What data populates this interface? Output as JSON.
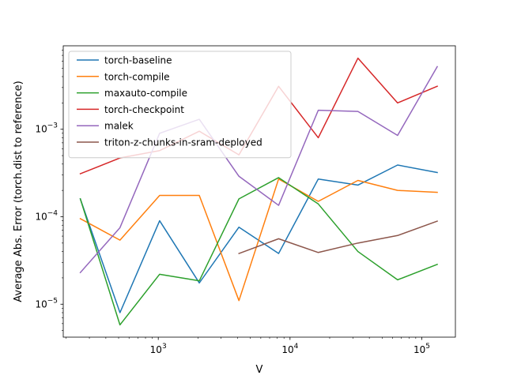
{
  "chart_data": {
    "type": "line",
    "title": "",
    "xlabel": "V",
    "ylabel": "Average Abs. Error (torch.dist to reference)",
    "xscale": "log",
    "yscale": "log",
    "xlim": [
      190,
      180000
    ],
    "ylim": [
      4.2e-06,
      0.009
    ],
    "x_ticks": [
      {
        "value": 1000,
        "base": "10",
        "exp": "3"
      },
      {
        "value": 10000,
        "base": "10",
        "exp": "4"
      },
      {
        "value": 100000,
        "base": "10",
        "exp": "5"
      }
    ],
    "y_ticks": [
      {
        "value": 1e-05,
        "base": "10",
        "exp": "−5"
      },
      {
        "value": 0.0001,
        "base": "10",
        "exp": "−4"
      },
      {
        "value": 0.001,
        "base": "10",
        "exp": "−3"
      }
    ],
    "legend_position": "top-left",
    "series": [
      {
        "name": "torch-baseline",
        "color": "#1f77b4",
        "x": [
          256,
          512,
          1024,
          2048,
          4096,
          8192,
          16384,
          32768,
          65536,
          131072
        ],
        "y": [
          0.00016,
          8e-06,
          9e-05,
          1.75e-05,
          7.6e-05,
          3.8e-05,
          0.00027,
          0.00023,
          0.00039,
          0.00032
        ]
      },
      {
        "name": "torch-compile",
        "color": "#ff7f0e",
        "x": [
          256,
          512,
          1024,
          2048,
          4096,
          8192,
          16384,
          32768,
          65536,
          131072
        ],
        "y": [
          9.5e-05,
          5.4e-05,
          0.000175,
          0.000175,
          1.1e-05,
          0.00027,
          0.00015,
          0.00026,
          0.0002,
          0.00019
        ]
      },
      {
        "name": "maxauto-compile",
        "color": "#2ca02c",
        "x": [
          256,
          512,
          1024,
          2048,
          4096,
          8192,
          16384,
          32768,
          65536,
          131072
        ],
        "y": [
          0.00016,
          5.8e-06,
          2.2e-05,
          1.85e-05,
          0.00016,
          0.00028,
          0.00014,
          4e-05,
          1.9e-05,
          2.85e-05
        ]
      },
      {
        "name": "torch-checkpoint",
        "color": "#d62728",
        "x": [
          256,
          512,
          1024,
          2048,
          4096,
          8192,
          16384,
          32768,
          65536,
          131072
        ],
        "y": [
          0.00031,
          0.00047,
          0.00057,
          0.00095,
          0.00051,
          0.0031,
          0.0008,
          0.0065,
          0.002,
          0.0031
        ]
      },
      {
        "name": "malek",
        "color": "#9467bd",
        "x": [
          256,
          512,
          1024,
          2048,
          4096,
          8192,
          16384,
          32768,
          65536,
          131072
        ],
        "y": [
          2.3e-05,
          7.5e-05,
          0.0009,
          0.0013,
          0.00029,
          0.000135,
          0.00165,
          0.0016,
          0.00085,
          0.0052
        ]
      },
      {
        "name": "triton-z-chunks-in-sram-deployed",
        "color": "#8c564b",
        "x": [
          4096,
          8192,
          16384,
          32768,
          65536,
          131072
        ],
        "y": [
          3.8e-05,
          5.6e-05,
          3.9e-05,
          5e-05,
          6.1e-05,
          8.9e-05
        ]
      }
    ]
  }
}
